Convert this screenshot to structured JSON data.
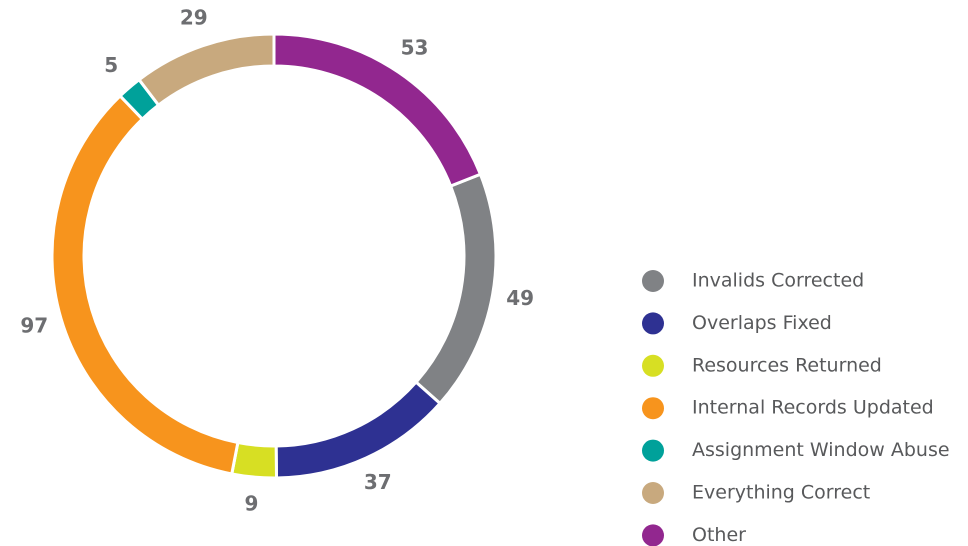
{
  "chart_data": {
    "type": "donut",
    "categories": [
      "Invalids Corrected",
      "Overlaps Fixed",
      "Resources Returned",
      "Internal Records Updated",
      "Assignment Window Abuse",
      "Everything Correct",
      "Other"
    ],
    "values": [
      49,
      37,
      9,
      97,
      5,
      29,
      53
    ],
    "colors": [
      "#808285",
      "#2e3192",
      "#d7df23",
      "#f7941d",
      "#00a19a",
      "#c8a97e",
      "#92278f"
    ],
    "legend": "right"
  }
}
